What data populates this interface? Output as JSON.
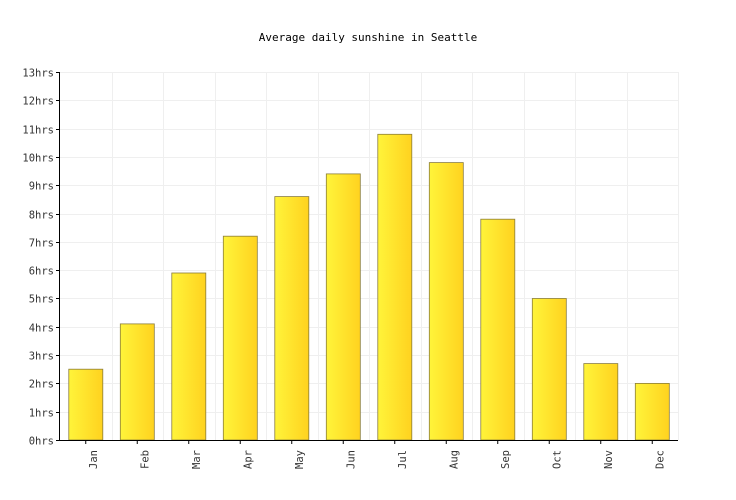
{
  "chart_data": {
    "type": "bar",
    "title": "Average daily sunshine in Seattle",
    "xlabel": "",
    "ylabel": "",
    "categories": [
      "Jan",
      "Feb",
      "Mar",
      "Apr",
      "May",
      "Jun",
      "Jul",
      "Aug",
      "Sep",
      "Oct",
      "Nov",
      "Dec"
    ],
    "values": [
      2.5,
      4.1,
      5.9,
      7.2,
      8.6,
      9.4,
      10.8,
      9.8,
      7.8,
      5.0,
      2.7,
      2.0
    ],
    "ylim": [
      0,
      13
    ],
    "yticks": [
      "0hrs",
      "1hrs",
      "2hrs",
      "3hrs",
      "4hrs",
      "5hrs",
      "6hrs",
      "7hrs",
      "8hrs",
      "9hrs",
      "10hrs",
      "11hrs",
      "12hrs",
      "13hrs"
    ],
    "grid": true,
    "colors": {
      "bar_light": "#fff43a",
      "bar_dark": "#ffd21f",
      "grid": "#efefef"
    }
  }
}
